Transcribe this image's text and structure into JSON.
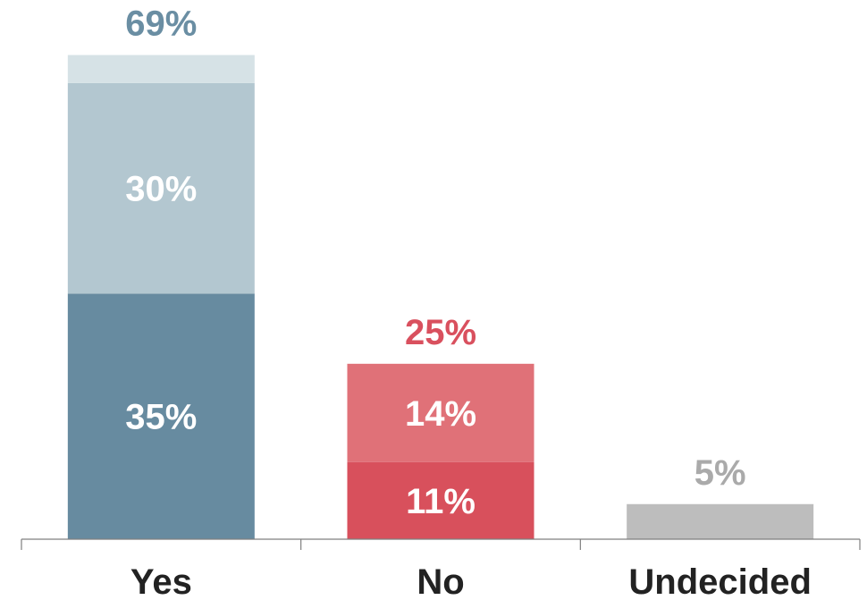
{
  "chart_data": {
    "type": "bar",
    "stacked": true,
    "title": "",
    "xlabel": "",
    "ylabel": "",
    "ylim": [
      0,
      72
    ],
    "grid": false,
    "legend": "none",
    "categories": [
      "Yes",
      "No",
      "Undecided"
    ],
    "bars": [
      {
        "category": "Yes",
        "total": 69,
        "total_label": "69%",
        "total_color": "#6a8ea3",
        "segments": [
          {
            "value": 35,
            "label": "35%",
            "color": "#678ba0",
            "label_color": "#ffffff"
          },
          {
            "value": 30,
            "label": "30%",
            "color": "#b3c7d0",
            "label_color": "#ffffff"
          },
          {
            "value": 4,
            "label": "",
            "color": "#d6e2e6",
            "label_color": "#ffffff"
          }
        ]
      },
      {
        "category": "No",
        "total": 25,
        "total_label": "25%",
        "total_color": "#d9505e",
        "segments": [
          {
            "value": 11,
            "label": "11%",
            "color": "#d8505c",
            "label_color": "#ffffff"
          },
          {
            "value": 14,
            "label": "14%",
            "color": "#e07178",
            "label_color": "#ffffff"
          }
        ]
      },
      {
        "category": "Undecided",
        "total": 5,
        "total_label": "5%",
        "total_color": "#aaaaaa",
        "segments": [
          {
            "value": 5,
            "label": "",
            "color": "#bdbdbd",
            "label_color": "#ffffff"
          }
        ]
      }
    ]
  }
}
